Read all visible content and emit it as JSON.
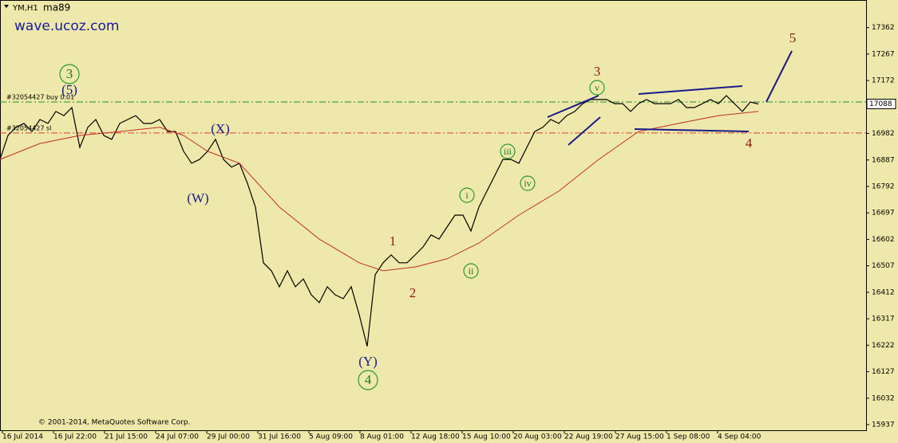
{
  "chart_data": {
    "type": "line",
    "title": "YM,H1",
    "subtitle": "ma89",
    "watermark": "wave.ucoz.com",
    "copyright": "© 2001-2014, MetaQuotes Software Corp.",
    "xlim": [
      0,
      108.5
    ],
    "ylim": [
      15917,
      17461
    ],
    "xticks": [
      {
        "value": 0.3,
        "label": "16 Jul 2014"
      },
      {
        "value": 6.7,
        "label": "16 Jul 22:00"
      },
      {
        "value": 13.1,
        "label": "21 Jul 15:00"
      },
      {
        "value": 19.5,
        "label": "24 Jul 07:00"
      },
      {
        "value": 25.9,
        "label": "29 Jul 00:00"
      },
      {
        "value": 32.3,
        "label": "31 Jul 16:00"
      },
      {
        "value": 38.7,
        "label": "5 Aug 09:00"
      },
      {
        "value": 45.1,
        "label": "8 Aug 01:00"
      },
      {
        "value": 51.5,
        "label": "12 Aug 18:00"
      },
      {
        "value": 57.9,
        "label": "15 Aug 10:00"
      },
      {
        "value": 64.3,
        "label": "20 Aug 03:00"
      },
      {
        "value": 70.7,
        "label": "22 Aug 19:00"
      },
      {
        "value": 77.1,
        "label": "27 Aug 15:00"
      },
      {
        "value": 83.5,
        "label": "1 Sep 08:00"
      },
      {
        "value": 89.9,
        "label": "4 Sep 04:00"
      }
    ],
    "yticks": [
      15937,
      16032,
      16127,
      16222,
      16317,
      16412,
      16507,
      16602,
      16697,
      16792,
      16887,
      16982,
      17172,
      17267,
      17362
    ],
    "current_price": 17088,
    "order_lines": [
      {
        "label": "#32054427 buy 0.01",
        "value": 17095,
        "color": "#2e8b2e"
      },
      {
        "label": "#32054427 sl",
        "value": 16984,
        "color": "#e0402a"
      }
    ],
    "series": [
      {
        "color": "#000000",
        "x": [
          0,
          1,
          2,
          3,
          4,
          5,
          6,
          7,
          8,
          9,
          10,
          11,
          12,
          13,
          14,
          15,
          16,
          17,
          18,
          19,
          20,
          21,
          22,
          23,
          24,
          25,
          26,
          27,
          28,
          29,
          30,
          31,
          32,
          33,
          34,
          35,
          36,
          37,
          38,
          39,
          40,
          41,
          42,
          43,
          44,
          45,
          46,
          47,
          48,
          49,
          50,
          51,
          52,
          53,
          54,
          55,
          56,
          57,
          58,
          59,
          60,
          61,
          62,
          63,
          64,
          65,
          66,
          67,
          68,
          69,
          70,
          71,
          72,
          73,
          74,
          75,
          76,
          77,
          78,
          79,
          80,
          81,
          82,
          83,
          84,
          85,
          86,
          87,
          88,
          89,
          90,
          91,
          92,
          93,
          94,
          95
        ],
        "values": [
          16889,
          16975,
          17004,
          17018,
          16989,
          17032,
          17018,
          17061,
          17046,
          17075,
          16932,
          17004,
          17032,
          16975,
          16961,
          17018,
          17032,
          17046,
          17018,
          17018,
          17032,
          16989,
          16989,
          16918,
          16875,
          16889,
          16918,
          16961,
          16889,
          16861,
          16875,
          16803,
          16718,
          16518,
          16489,
          16432,
          16489,
          16432,
          16460,
          16403,
          16375,
          16432,
          16403,
          16389,
          16432,
          16332,
          16218,
          16475,
          16518,
          16546,
          16518,
          16518,
          16546,
          16575,
          16618,
          16603,
          16646,
          16689,
          16689,
          16632,
          16718,
          16775,
          16832,
          16889,
          16889,
          16875,
          16932,
          16989,
          17004,
          17032,
          17018,
          17046,
          17061,
          17089,
          17104,
          17104,
          17104,
          17089,
          17089,
          17061,
          17089,
          17104,
          17089,
          17089,
          17089,
          17104,
          17075,
          17075,
          17089,
          17104,
          17089,
          17118,
          17089,
          17061,
          17095,
          17088
        ]
      },
      {
        "color": "#c0302a",
        "x": [
          0,
          5,
          10,
          15,
          20,
          23,
          26,
          30,
          35,
          40,
          45,
          48,
          52,
          56,
          60,
          65,
          70,
          75,
          80,
          85,
          90,
          95
        ],
        "values": [
          16889,
          16946,
          16975,
          16989,
          17004,
          16975,
          16918,
          16875,
          16718,
          16603,
          16518,
          16489,
          16503,
          16532,
          16589,
          16689,
          16775,
          16889,
          16989,
          17018,
          17046,
          17061
        ]
      }
    ],
    "annotations": [
      "3",
      "(5)",
      "(X)",
      "(W)",
      "(Y)",
      "4",
      "1",
      "2",
      "i",
      "ii",
      "iii",
      "iv",
      "v",
      "3",
      "5",
      "4"
    ]
  }
}
